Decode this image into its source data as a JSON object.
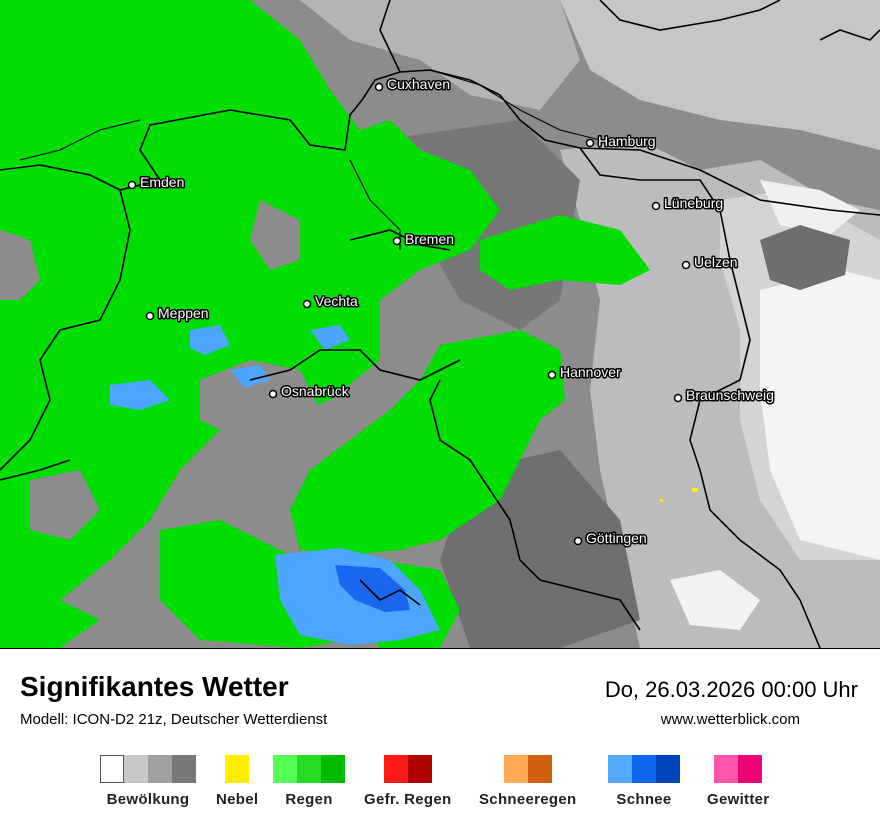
{
  "title": "Signifikantes Wetter",
  "subtitle": "Modell: ICON-D2 21z, Deutscher Wetterdienst",
  "datetime": "Do, 26.03.2026 00:00 Uhr",
  "website": "www.wetterblick.com",
  "cities": [
    {
      "name": "Cuxhaven"
    },
    {
      "name": "Hamburg"
    },
    {
      "name": "Emden"
    },
    {
      "name": "Lüneburg"
    },
    {
      "name": "Bremen"
    },
    {
      "name": "Uelzen"
    },
    {
      "name": "Vechta"
    },
    {
      "name": "Meppen"
    },
    {
      "name": "Hannover"
    },
    {
      "name": "Osnabrück"
    },
    {
      "name": "Braunschweig"
    },
    {
      "name": "Göttingen"
    }
  ],
  "legend": [
    {
      "label": "Bewölkung",
      "colors": [
        "#ffffff",
        "#c8c8c8",
        "#a0a0a0",
        "#787878"
      ]
    },
    {
      "label": "Nebel",
      "colors": [
        "#ffee00"
      ]
    },
    {
      "label": "Regen",
      "colors": [
        "#55ff55",
        "#22dd22",
        "#00bb00"
      ]
    },
    {
      "label": "Gefr. Regen",
      "colors": [
        "#ff1a1a",
        "#b00000"
      ]
    },
    {
      "label": "Schneeregen",
      "colors": [
        "#ffaa55",
        "#d06010"
      ]
    },
    {
      "label": "Schnee",
      "colors": [
        "#55aaff",
        "#1166ee",
        "#0044bb"
      ]
    },
    {
      "label": "Gewitter",
      "colors": [
        "#ff55aa",
        "#ee0077"
      ]
    }
  ],
  "colors": {
    "rain": "#00dd00",
    "snow": "#4da6ff",
    "snow_heavy": "#1a66ee",
    "cloud_light": "#d6d6d6",
    "cloud_mid": "#a8a8a8",
    "cloud_dark": "#7f7f7f"
  }
}
